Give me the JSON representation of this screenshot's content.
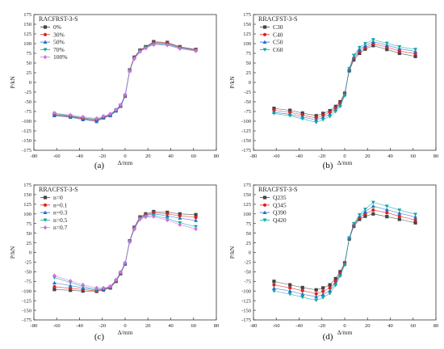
{
  "chart_data": [
    {
      "type": "line",
      "caption": "(a)",
      "legend_title": "RACFRST-3-S",
      "xlabel": "Δ/mm",
      "ylabel": "P/kN",
      "xlim": [
        -80,
        80
      ],
      "ylim": [
        -175,
        175
      ],
      "xticks": [
        -80,
        -60,
        -40,
        -20,
        0,
        20,
        40,
        60,
        80
      ],
      "yticks": [
        -175,
        -150,
        -125,
        -100,
        -75,
        -50,
        -25,
        0,
        25,
        50,
        75,
        100,
        125,
        150,
        175
      ],
      "grid": false,
      "legend_position": "top-left",
      "series": [
        {
          "name": "0%",
          "color": "#444444",
          "marker": "square",
          "x": [
            -62,
            -48,
            -37,
            -25,
            -19,
            -13,
            -8,
            -4,
            0,
            4,
            8,
            13,
            18,
            25,
            37,
            48,
            62
          ],
          "y": [
            -83,
            -87,
            -93,
            -97,
            -90,
            -84,
            -72,
            -60,
            -34,
            32,
            65,
            83,
            92,
            105,
            103,
            92,
            85
          ]
        },
        {
          "name": "30%",
          "color": "#e02020",
          "marker": "circle",
          "x": [
            -62,
            -48,
            -37,
            -25,
            -19,
            -13,
            -8,
            -4,
            0,
            4,
            8,
            13,
            18,
            25,
            37,
            48,
            62
          ],
          "y": [
            -84,
            -89,
            -94,
            -99,
            -91,
            -85,
            -73,
            -61,
            -35,
            31,
            64,
            82,
            91,
            103,
            101,
            91,
            84
          ]
        },
        {
          "name": "50%",
          "color": "#1e6fcc",
          "marker": "triangle-up",
          "x": [
            -62,
            -48,
            -37,
            -25,
            -19,
            -13,
            -8,
            -4,
            0,
            4,
            8,
            13,
            18,
            25,
            37,
            48,
            62
          ],
          "y": [
            -86,
            -90,
            -96,
            -101,
            -92,
            -86,
            -74,
            -62,
            -36,
            30,
            63,
            81,
            90,
            101,
            99,
            90,
            83
          ]
        },
        {
          "name": "70%",
          "color": "#10a8a0",
          "marker": "triangle-down",
          "x": [
            -62,
            -48,
            -37,
            -25,
            -19,
            -13,
            -8,
            -4,
            0,
            4,
            8,
            13,
            18,
            25,
            37,
            48,
            62
          ],
          "y": [
            -80,
            -86,
            -91,
            -95,
            -89,
            -83,
            -71,
            -59,
            -33,
            30,
            62,
            80,
            89,
            99,
            97,
            88,
            82
          ]
        },
        {
          "name": "100%",
          "color": "#d070e0",
          "marker": "diamond",
          "x": [
            -62,
            -48,
            -37,
            -25,
            -19,
            -13,
            -8,
            -4,
            0,
            4,
            8,
            13,
            18,
            25,
            37,
            48,
            62
          ],
          "y": [
            -79,
            -84,
            -89,
            -93,
            -87,
            -81,
            -70,
            -58,
            -32,
            29,
            61,
            79,
            88,
            97,
            96,
            87,
            81
          ]
        }
      ]
    },
    {
      "type": "line",
      "caption": "(b)",
      "legend_title": "RRACFST-3-S",
      "xlabel": "Δ/mm",
      "ylabel": "P/kN",
      "xlim": [
        -80,
        80
      ],
      "ylim": [
        -175,
        175
      ],
      "xticks": [
        -80,
        -60,
        -40,
        -20,
        0,
        20,
        40,
        60,
        80
      ],
      "yticks": [
        -175,
        -150,
        -125,
        -100,
        -75,
        -50,
        -25,
        0,
        25,
        50,
        75,
        100,
        125,
        150,
        175
      ],
      "grid": false,
      "legend_position": "top-left",
      "series": [
        {
          "name": "C30",
          "color": "#444444",
          "marker": "square",
          "x": [
            -62,
            -48,
            -37,
            -25,
            -19,
            -13,
            -8,
            -4,
            0,
            4,
            8,
            13,
            18,
            25,
            37,
            48,
            62
          ],
          "y": [
            -67,
            -72,
            -79,
            -86,
            -80,
            -73,
            -62,
            -50,
            -28,
            30,
            58,
            75,
            86,
            95,
            85,
            75,
            67
          ]
        },
        {
          "name": "C40",
          "color": "#e02020",
          "marker": "circle",
          "x": [
            -62,
            -48,
            -37,
            -25,
            -19,
            -13,
            -8,
            -4,
            0,
            4,
            8,
            13,
            18,
            25,
            37,
            48,
            62
          ],
          "y": [
            -72,
            -77,
            -84,
            -92,
            -85,
            -77,
            -66,
            -54,
            -30,
            32,
            62,
            80,
            90,
            100,
            91,
            81,
            74
          ]
        },
        {
          "name": "C50",
          "color": "#1e6fcc",
          "marker": "triangle-up",
          "x": [
            -62,
            -48,
            -37,
            -25,
            -19,
            -13,
            -8,
            -4,
            0,
            4,
            8,
            13,
            18,
            25,
            37,
            48,
            62
          ],
          "y": [
            -77,
            -82,
            -89,
            -97,
            -90,
            -82,
            -70,
            -58,
            -32,
            34,
            66,
            85,
            95,
            105,
            96,
            87,
            80
          ]
        },
        {
          "name": "C60",
          "color": "#10a8a0",
          "marker": "triangle-down",
          "x": [
            -62,
            -48,
            -37,
            -25,
            -19,
            -13,
            -8,
            -4,
            0,
            4,
            8,
            13,
            18,
            25,
            37,
            48,
            62
          ],
          "y": [
            -80,
            -86,
            -94,
            -103,
            -96,
            -88,
            -75,
            -62,
            -34,
            36,
            70,
            90,
            100,
            110,
            101,
            92,
            85
          ]
        }
      ]
    },
    {
      "type": "line",
      "caption": "(c)",
      "legend_title": "RRACFST-3-S",
      "xlabel": "Δ/mm",
      "ylabel": "P/kN",
      "xlim": [
        -80,
        80
      ],
      "ylim": [
        -175,
        175
      ],
      "xticks": [
        -80,
        -60,
        -40,
        -20,
        0,
        20,
        40,
        60,
        80
      ],
      "yticks": [
        -175,
        -150,
        -125,
        -100,
        -75,
        -50,
        -25,
        0,
        25,
        50,
        75,
        100,
        125,
        150,
        175
      ],
      "grid": false,
      "legend_position": "top-left",
      "series": [
        {
          "name": "n=0",
          "color": "#444444",
          "marker": "square",
          "x": [
            -62,
            -48,
            -37,
            -25,
            -19,
            -13,
            -8,
            -4,
            0,
            4,
            8,
            13,
            18,
            25,
            37,
            48,
            62
          ],
          "y": [
            -96,
            -98,
            -100,
            -101,
            -97,
            -92,
            -75,
            -55,
            -30,
            30,
            65,
            92,
            100,
            106,
            104,
            100,
            98
          ]
        },
        {
          "name": "n=0.1",
          "color": "#e02020",
          "marker": "circle",
          "x": [
            -62,
            -48,
            -37,
            -25,
            -19,
            -13,
            -8,
            -4,
            0,
            4,
            8,
            13,
            18,
            25,
            37,
            48,
            62
          ],
          "y": [
            -89,
            -93,
            -96,
            -100,
            -96,
            -91,
            -74,
            -54,
            -30,
            30,
            64,
            91,
            98,
            103,
            100,
            95,
            91
          ]
        },
        {
          "name": "n=0.3",
          "color": "#1e6fcc",
          "marker": "triangle-up",
          "x": [
            -62,
            -48,
            -37,
            -25,
            -19,
            -13,
            -8,
            -4,
            0,
            4,
            8,
            13,
            18,
            25,
            37,
            48,
            62
          ],
          "y": [
            -79,
            -86,
            -92,
            -98,
            -95,
            -90,
            -73,
            -53,
            -29,
            29,
            63,
            90,
            96,
            100,
            95,
            89,
            83
          ]
        },
        {
          "name": "n=0.5",
          "color": "#10a8a0",
          "marker": "triangle-down",
          "x": [
            -62,
            -48,
            -37,
            -25,
            -19,
            -13,
            -8,
            -4,
            0,
            4,
            8,
            13,
            18,
            25,
            37,
            48,
            62
          ],
          "y": [
            -65,
            -78,
            -88,
            -96,
            -94,
            -89,
            -72,
            -52,
            -28,
            28,
            62,
            88,
            94,
            96,
            88,
            77,
            67
          ]
        },
        {
          "name": "n=0.7",
          "color": "#d070e0",
          "marker": "diamond",
          "x": [
            -62,
            -48,
            -37,
            -25,
            -19,
            -13,
            -8,
            -4,
            0,
            4,
            8,
            13,
            18,
            25,
            37,
            48,
            62
          ],
          "y": [
            -60,
            -74,
            -84,
            -92,
            -92,
            -88,
            -71,
            -51,
            -27,
            27,
            60,
            86,
            92,
            93,
            84,
            72,
            61
          ]
        }
      ]
    },
    {
      "type": "line",
      "caption": "(d)",
      "legend_title": "RRACFST-3-S",
      "xlabel": "Δ/mm",
      "ylabel": "P/kN",
      "xlim": [
        -80,
        80
      ],
      "ylim": [
        -175,
        175
      ],
      "xticks": [
        -80,
        -60,
        -40,
        -20,
        0,
        20,
        40,
        60,
        80
      ],
      "yticks": [
        -175,
        -150,
        -125,
        -100,
        -75,
        -50,
        -25,
        0,
        25,
        50,
        75,
        100,
        125,
        150,
        175
      ],
      "grid": false,
      "legend_position": "top-left",
      "series": [
        {
          "name": "Q235",
          "color": "#444444",
          "marker": "square",
          "x": [
            -62,
            -48,
            -37,
            -25,
            -19,
            -13,
            -8,
            -4,
            0,
            4,
            8,
            13,
            18,
            25,
            37,
            48,
            62
          ],
          "y": [
            -75,
            -84,
            -91,
            -97,
            -92,
            -84,
            -68,
            -50,
            -27,
            35,
            68,
            86,
            94,
            100,
            93,
            86,
            77
          ]
        },
        {
          "name": "Q345",
          "color": "#e02020",
          "marker": "circle",
          "x": [
            -62,
            -48,
            -37,
            -25,
            -19,
            -13,
            -8,
            -4,
            0,
            4,
            8,
            13,
            18,
            25,
            37,
            48,
            62
          ],
          "y": [
            -84,
            -92,
            -99,
            -107,
            -101,
            -92,
            -75,
            -55,
            -29,
            36,
            70,
            90,
            100,
            110,
            103,
            94,
            84
          ]
        },
        {
          "name": "Q390",
          "color": "#1e6fcc",
          "marker": "triangle-up",
          "x": [
            -62,
            -48,
            -37,
            -25,
            -19,
            -13,
            -8,
            -4,
            0,
            4,
            8,
            13,
            18,
            25,
            37,
            48,
            62
          ],
          "y": [
            -93,
            -100,
            -108,
            -115,
            -109,
            -99,
            -80,
            -58,
            -31,
            37,
            72,
            93,
            106,
            120,
            111,
            102,
            92
          ]
        },
        {
          "name": "Q420",
          "color": "#10a8a0",
          "marker": "triangle-down",
          "x": [
            -62,
            -48,
            -37,
            -25,
            -19,
            -13,
            -8,
            -4,
            0,
            4,
            8,
            13,
            18,
            25,
            37,
            48,
            62
          ],
          "y": [
            -100,
            -108,
            -116,
            -124,
            -117,
            -106,
            -85,
            -61,
            -32,
            38,
            75,
            98,
            112,
            130,
            120,
            110,
            99
          ]
        }
      ]
    }
  ]
}
